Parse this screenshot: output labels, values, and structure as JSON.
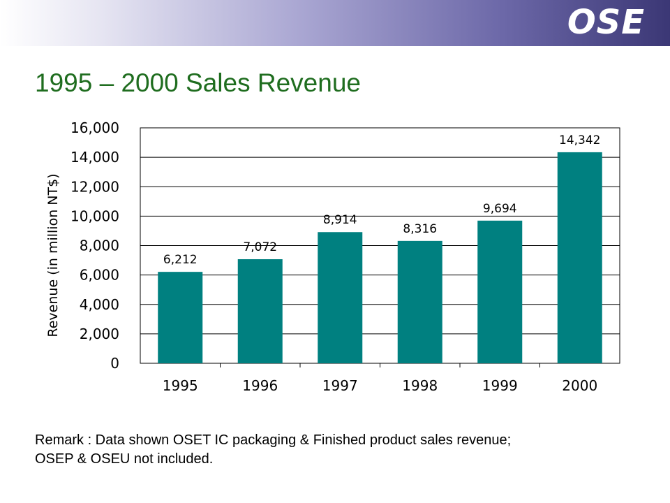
{
  "header": {
    "logo_text": "OSE"
  },
  "title": "1995 – 2000 Sales Revenue",
  "remark": {
    "line1": "Remark : Data shown OSET IC packaging & Finished product sales revenue;",
    "line2": "OSEP & OSEU not included."
  },
  "colors": {
    "bar": "#008080",
    "title": "#1f6d1f",
    "header_dark": "#3b3775"
  },
  "chart_data": {
    "type": "bar",
    "categories": [
      "1995",
      "1996",
      "1997",
      "1998",
      "1999",
      "2000"
    ],
    "values": [
      6212,
      7072,
      8914,
      8316,
      9694,
      14342
    ],
    "value_labels": [
      "6,212",
      "7,072",
      "8,914",
      "8,316",
      "9,694",
      "14,342"
    ],
    "ylabel": "Revenue (in million NT$)",
    "xlabel": "",
    "ylim": [
      0,
      16000
    ],
    "yticks": [
      0,
      2000,
      4000,
      6000,
      8000,
      10000,
      12000,
      14000,
      16000
    ],
    "ytick_labels": [
      "0",
      "2,000",
      "4,000",
      "6,000",
      "8,000",
      "10,000",
      "12,000",
      "14,000",
      "16,000"
    ],
    "grid": true,
    "legend": "none"
  }
}
